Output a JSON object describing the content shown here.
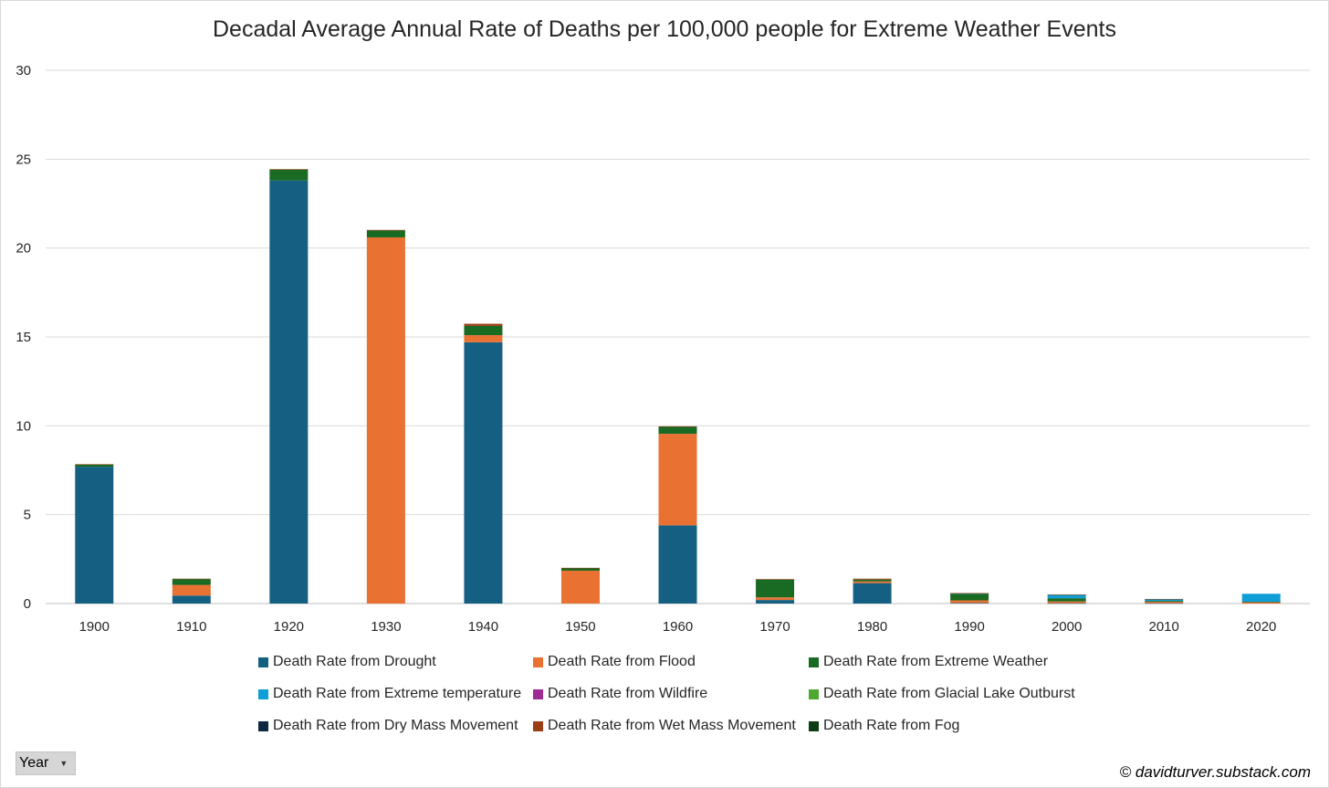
{
  "chart_data": {
    "type": "bar",
    "stacked": true,
    "title": "Decadal Average Annual Rate of Deaths per 100,000 people for Extreme Weather Events",
    "xlabel": "",
    "ylabel": "",
    "ylim": [
      0,
      30
    ],
    "yticks": [
      0,
      5,
      10,
      15,
      20,
      25,
      30
    ],
    "grid": true,
    "legend_position": "bottom",
    "categories": [
      "1900",
      "1910",
      "1920",
      "1930",
      "1940",
      "1950",
      "1960",
      "1970",
      "1980",
      "1990",
      "2000",
      "2010",
      "2020"
    ],
    "series": [
      {
        "name": "Death Rate from Drought",
        "color": "#156082",
        "values": [
          7.7,
          0.45,
          23.8,
          0.0,
          14.7,
          0.0,
          4.4,
          0.2,
          1.15,
          0.03,
          0.02,
          0.02,
          0.0
        ]
      },
      {
        "name": "Death Rate from Flood",
        "color": "#E97132",
        "values": [
          0.0,
          0.6,
          0.0,
          20.6,
          0.4,
          1.85,
          5.15,
          0.15,
          0.1,
          0.15,
          0.1,
          0.08,
          0.08
        ]
      },
      {
        "name": "Death Rate from Extreme Weather",
        "color": "#196B24",
        "values": [
          0.12,
          0.33,
          0.62,
          0.4,
          0.52,
          0.14,
          0.4,
          1.0,
          0.1,
          0.38,
          0.18,
          0.05,
          0.02
        ]
      },
      {
        "name": "Death Rate from Extreme temperature",
        "color": "#0F9ED5",
        "values": [
          0.0,
          0.0,
          0.0,
          0.0,
          0.0,
          0.0,
          0.0,
          0.0,
          0.0,
          0.02,
          0.2,
          0.1,
          0.45
        ]
      },
      {
        "name": "Death Rate from Wildfire",
        "color": "#A02B93",
        "values": [
          0,
          0,
          0,
          0,
          0,
          0,
          0,
          0,
          0,
          0,
          0,
          0,
          0
        ]
      },
      {
        "name": "Death Rate from Glacial Lake Outburst",
        "color": "#4EA72E",
        "values": [
          0,
          0,
          0,
          0,
          0,
          0,
          0,
          0,
          0,
          0,
          0,
          0,
          0
        ]
      },
      {
        "name": "Death Rate from Dry Mass Movement",
        "color": "#0E2841",
        "values": [
          0,
          0,
          0,
          0,
          0,
          0,
          0,
          0,
          0,
          0,
          0,
          0,
          0
        ]
      },
      {
        "name": "Death Rate from Wet Mass Movement",
        "color": "#9C3E16",
        "values": [
          0.02,
          0.02,
          0.02,
          0.02,
          0.12,
          0.02,
          0.02,
          0.03,
          0.05,
          0.01,
          0.01,
          0.01,
          0.0
        ]
      },
      {
        "name": "Death Rate from Fog",
        "color": "#0F3E14",
        "values": [
          0,
          0,
          0,
          0,
          0,
          0,
          0,
          0,
          0,
          0,
          0,
          0,
          0
        ]
      }
    ]
  },
  "filter_button": {
    "label": "Year",
    "icon": "dropdown-arrow-icon"
  },
  "credit": "© davidturver.substack.com"
}
